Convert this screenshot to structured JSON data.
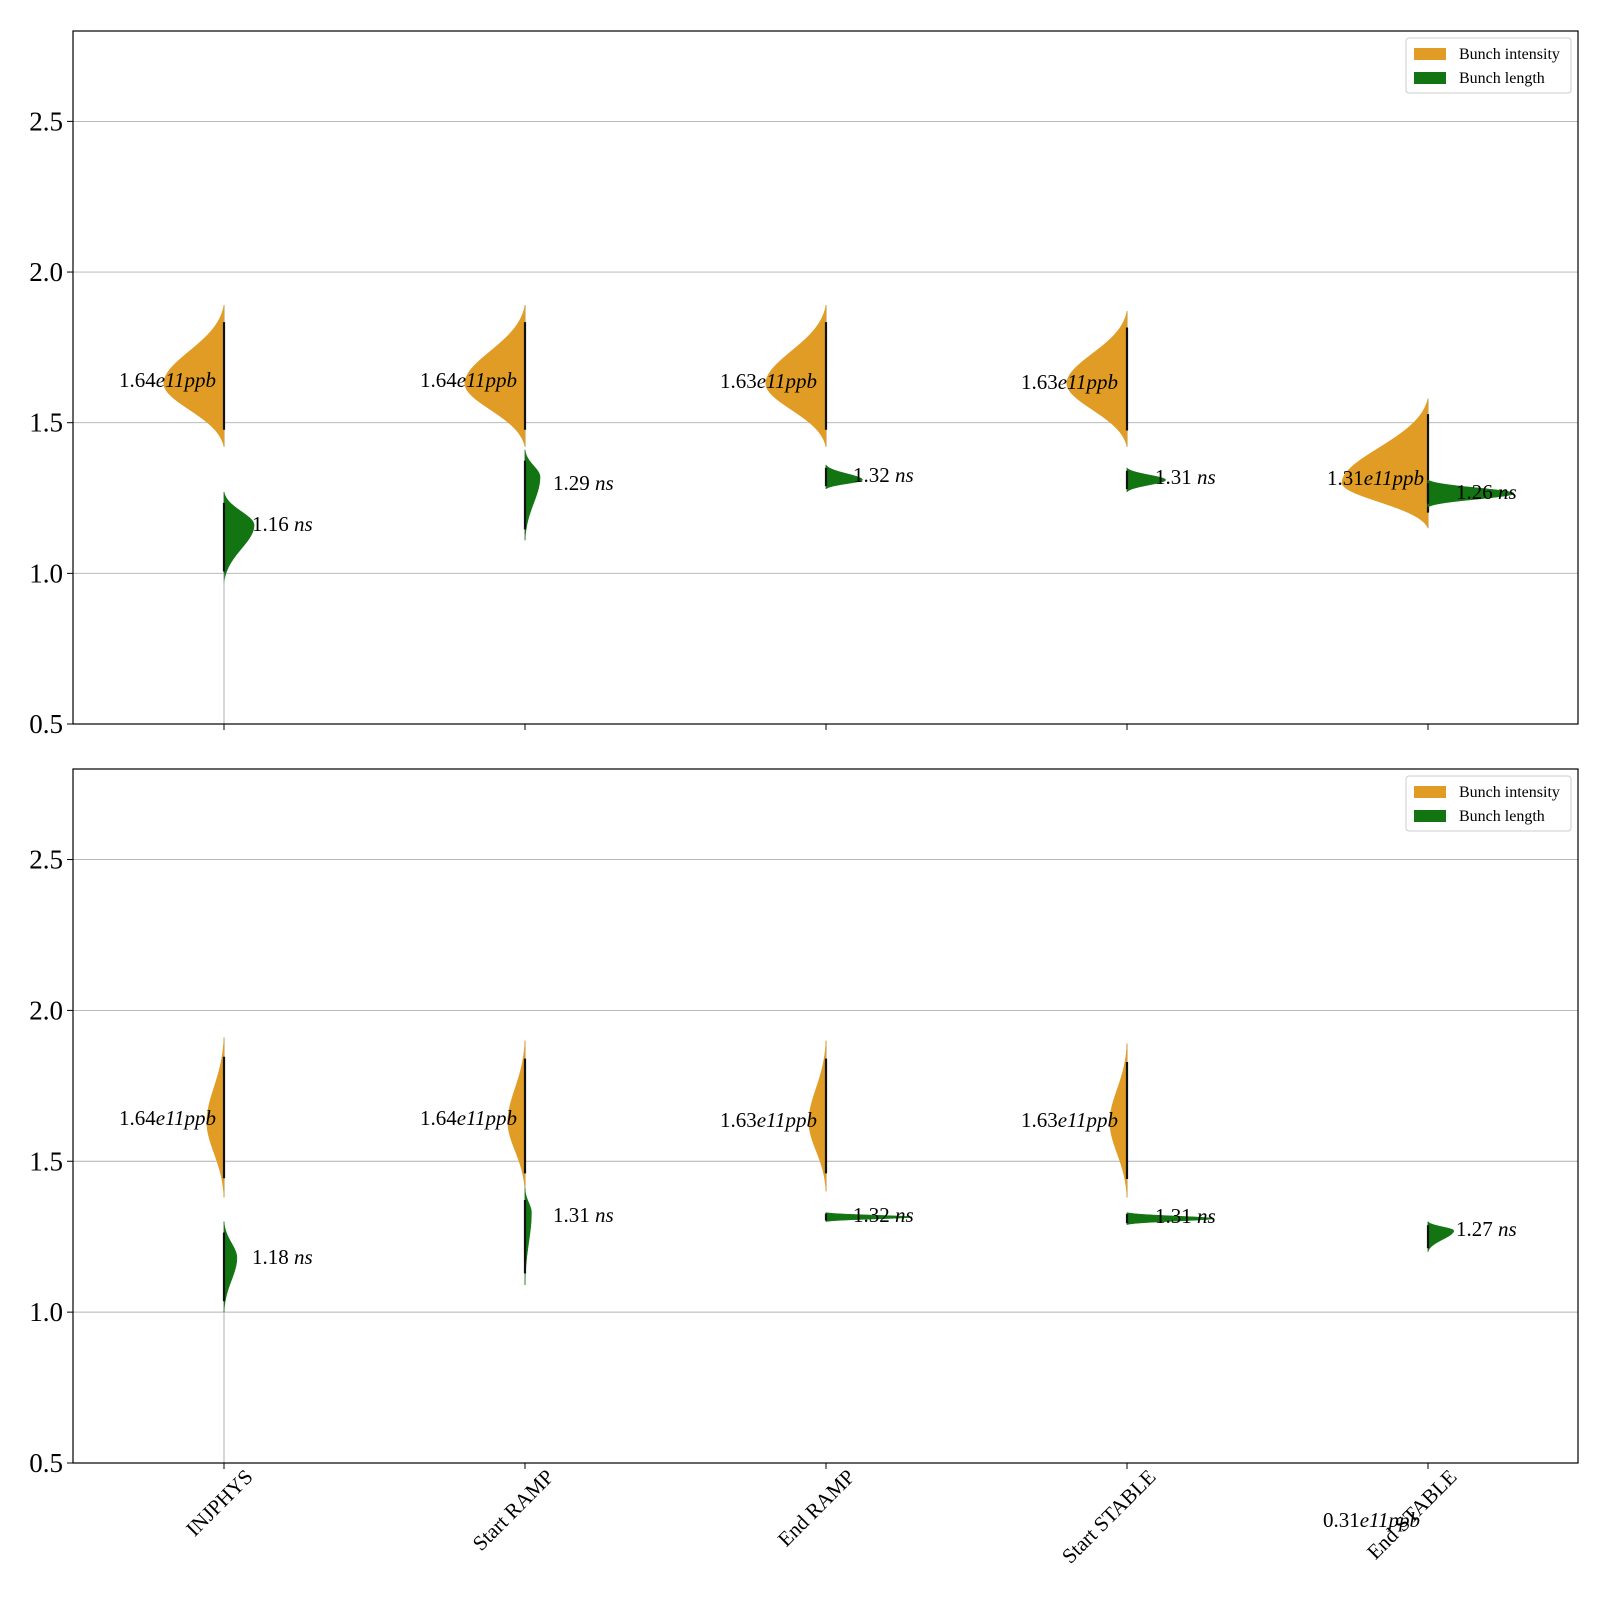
{
  "chart_data": [
    {
      "type": "violin",
      "panel": "top",
      "categories": [
        "INJPHYS",
        "Start RAMP",
        "End RAMP",
        "Start STABLE",
        "End STABLE"
      ],
      "ylim": [
        0.5,
        2.8
      ],
      "yticks": [
        0.5,
        1.0,
        1.5,
        2.0,
        2.5
      ],
      "grid": true,
      "legend": {
        "placement": "top-right",
        "entries": [
          {
            "label": "Bunch intensity",
            "color": "#e09c25"
          },
          {
            "label": "Bunch length",
            "color": "#127512"
          }
        ]
      },
      "series": [
        {
          "name": "Bunch intensity",
          "side": "left",
          "color": "#e09c25",
          "min": [
            1.42,
            1.42,
            1.42,
            1.42,
            1.15
          ],
          "max": [
            1.89,
            1.89,
            1.89,
            1.87,
            1.58
          ],
          "mode": [
            1.63,
            1.63,
            1.63,
            1.63,
            1.3
          ],
          "width": [
            0.28,
            0.28,
            0.28,
            0.28,
            0.4
          ],
          "labels": [
            {
              "num": "1.64",
              "unit": "e11ppb"
            },
            {
              "num": "1.64",
              "unit": "e11ppb"
            },
            {
              "num": "1.63",
              "unit": "e11ppb"
            },
            {
              "num": "1.63",
              "unit": "e11ppb"
            },
            {
              "num": "1.31",
              "unit": "e11ppb"
            }
          ]
        },
        {
          "name": "Bunch length",
          "side": "right",
          "color": "#127512",
          "min": [
            0.97,
            1.11,
            1.28,
            1.27,
            1.22
          ],
          "max": [
            1.27,
            1.41,
            1.36,
            1.35,
            1.31
          ],
          "mode": [
            1.16,
            1.32,
            1.31,
            1.31,
            1.265
          ],
          "width": [
            0.14,
            0.07,
            0.17,
            0.18,
            0.4
          ],
          "labels": [
            {
              "num": "1.16",
              "unit": "ns"
            },
            {
              "num": "1.29",
              "unit": "ns"
            },
            {
              "num": "1.32",
              "unit": "ns"
            },
            {
              "num": "1.31",
              "unit": "ns"
            },
            {
              "num": "1.26",
              "unit": "ns"
            }
          ]
        }
      ]
    },
    {
      "type": "violin",
      "panel": "bottom",
      "categories": [
        "INJPHYS",
        "Start RAMP",
        "End RAMP",
        "Start STABLE",
        "End STABLE"
      ],
      "ylim": [
        0.5,
        2.8
      ],
      "yticks": [
        0.5,
        1.0,
        1.5,
        2.0,
        2.5
      ],
      "grid": true,
      "legend": {
        "placement": "top-right",
        "entries": [
          {
            "label": "Bunch intensity",
            "color": "#e09c25"
          },
          {
            "label": "Bunch length",
            "color": "#127512"
          }
        ]
      },
      "series": [
        {
          "name": "Bunch intensity",
          "side": "left",
          "color": "#e09c25",
          "min": [
            1.38,
            1.4,
            1.4,
            1.38,
            null
          ],
          "max": [
            1.91,
            1.9,
            1.9,
            1.89,
            null
          ],
          "mode": [
            1.63,
            1.63,
            1.63,
            1.63,
            null
          ],
          "width": [
            0.08,
            0.08,
            0.08,
            0.08,
            0
          ],
          "labels": [
            {
              "num": "1.64",
              "unit": "e11ppb"
            },
            {
              "num": "1.64",
              "unit": "e11ppb"
            },
            {
              "num": "1.63",
              "unit": "e11ppb"
            },
            {
              "num": "1.63",
              "unit": "e11ppb"
            },
            {
              "num": "0.31",
              "unit": "e11ppb"
            }
          ]
        },
        {
          "name": "Bunch length",
          "side": "right",
          "color": "#127512",
          "min": [
            1.0,
            1.09,
            1.3,
            1.29,
            1.2
          ],
          "max": [
            1.3,
            1.41,
            1.33,
            1.33,
            1.3
          ],
          "mode": [
            1.18,
            1.33,
            1.315,
            1.31,
            1.27
          ],
          "width": [
            0.06,
            0.03,
            0.4,
            0.4,
            0.12
          ],
          "labels": [
            {
              "num": "1.18",
              "unit": "ns"
            },
            {
              "num": "1.31",
              "unit": "ns"
            },
            {
              "num": "1.32",
              "unit": "ns"
            },
            {
              "num": "1.31",
              "unit": "ns"
            },
            {
              "num": "1.27",
              "unit": "ns"
            }
          ]
        }
      ]
    }
  ]
}
